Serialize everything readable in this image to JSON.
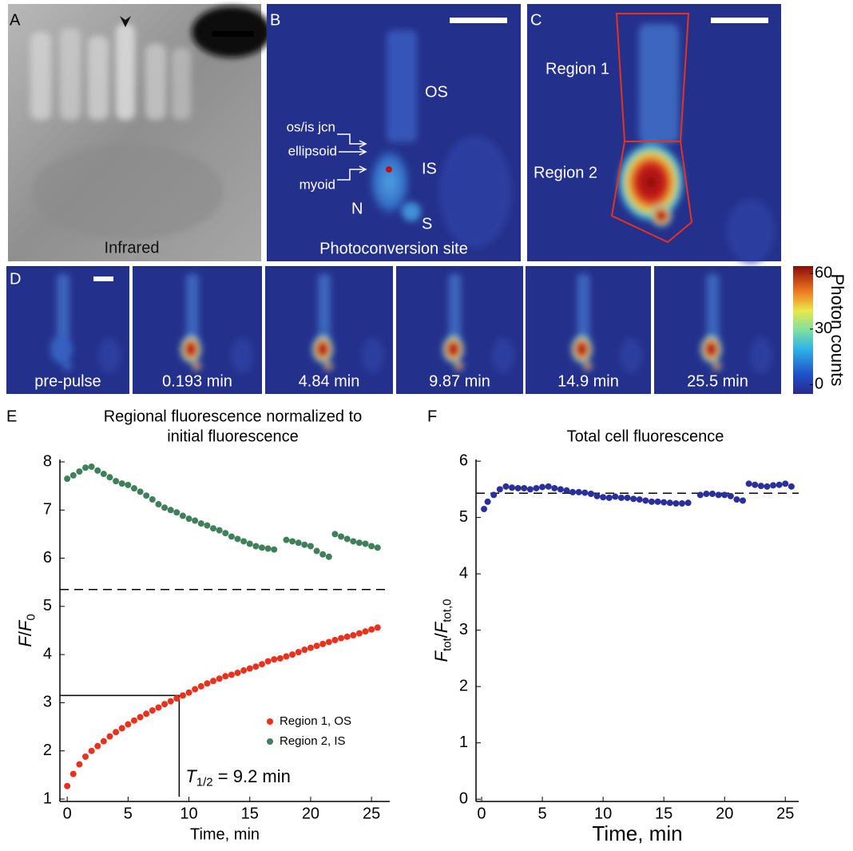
{
  "panel_a": {
    "label": "A",
    "caption": "Infrared"
  },
  "panel_b": {
    "label": "B",
    "os": "OS",
    "is": "IS",
    "n": "N",
    "s": "S",
    "arrows": [
      "os/is jcn",
      "ellipsoid",
      "myoid"
    ],
    "caption": "Photoconversion site"
  },
  "panel_c": {
    "label": "C",
    "regions": [
      "Region 1",
      "Region 2"
    ]
  },
  "panel_d": {
    "label": "D",
    "frames": [
      "pre-pulse",
      "0.193 min",
      "4.84 min",
      "9.87 min",
      "14.9 min",
      "25.5 min"
    ]
  },
  "colorbar": {
    "label": "Photon counts",
    "clim": [
      -5,
      64
    ],
    "ticks": [
      0,
      30,
      60
    ]
  },
  "chart_data": [
    {
      "type": "scatter",
      "panel_label": "E",
      "title_lines": [
        "Regional fluorescence normalized to",
        "initial fluorescence"
      ],
      "xlabel": "Time, min",
      "ylabel": [
        {
          "text": "F",
          "italic": true
        },
        {
          "text": "/"
        },
        {
          "text": "F",
          "italic": true
        },
        {
          "text": "0",
          "sub": true
        }
      ],
      "xlim": [
        -0.6,
        26.5
      ],
      "ylim": [
        0.95,
        8.05
      ],
      "xticks": [
        0,
        5,
        10,
        15,
        20,
        25
      ],
      "yticks": [
        1,
        2,
        3,
        4,
        5,
        6,
        7,
        8
      ],
      "legend": "lower right",
      "reference": {
        "dashed": 5.35,
        "half_time": 9.2,
        "half_level": 3.15
      },
      "annotation": [
        {
          "text": "T",
          "italic": true
        },
        {
          "text": "1/2",
          "sub": true
        },
        {
          "text": " = 9.2 min"
        }
      ],
      "series": [
        {
          "name": "Region 1, OS",
          "color": "#e8321e",
          "x": [
            0,
            0.5,
            1,
            1.5,
            2,
            2.5,
            3,
            3.5,
            4,
            4.5,
            5,
            5.5,
            6,
            6.5,
            7,
            7.5,
            8,
            8.5,
            9,
            9.5,
            10,
            10.5,
            11,
            11.5,
            12,
            12.5,
            13,
            13.5,
            14,
            14.5,
            15,
            15.5,
            16,
            16.5,
            17,
            17.5,
            18,
            18.5,
            19,
            19.5,
            20,
            20.5,
            21,
            21.5,
            22,
            22.5,
            23,
            23.5,
            24,
            24.5,
            25,
            25.5
          ],
          "values": [
            1.27,
            1.52,
            1.72,
            1.88,
            2.0,
            2.1,
            2.2,
            2.3,
            2.39,
            2.47,
            2.55,
            2.63,
            2.7,
            2.77,
            2.84,
            2.9,
            2.97,
            3.03,
            3.09,
            3.15,
            3.21,
            3.28,
            3.34,
            3.4,
            3.45,
            3.5,
            3.55,
            3.58,
            3.62,
            3.67,
            3.71,
            3.75,
            3.8,
            3.86,
            3.9,
            3.92,
            3.96,
            4.0,
            4.05,
            4.1,
            4.14,
            4.18,
            4.22,
            4.26,
            4.3,
            4.34,
            4.37,
            4.4,
            4.44,
            4.48,
            4.52,
            4.56
          ]
        },
        {
          "name": "Region 2, IS",
          "color": "#3f7f5a",
          "x": [
            0,
            0.5,
            1,
            1.5,
            2,
            2.5,
            3,
            3.5,
            4,
            4.5,
            5,
            5.5,
            6,
            6.5,
            7,
            7.5,
            8,
            8.5,
            9,
            9.5,
            10,
            10.5,
            11,
            11.5,
            12,
            12.5,
            13,
            13.5,
            14,
            14.5,
            15,
            15.5,
            16,
            16.5,
            17,
            18,
            18.5,
            19,
            19.5,
            20,
            20.5,
            21,
            21.5,
            22,
            22.5,
            23,
            23.5,
            24,
            24.5,
            25,
            25.5
          ],
          "values": [
            7.65,
            7.72,
            7.8,
            7.88,
            7.9,
            7.82,
            7.75,
            7.68,
            7.6,
            7.55,
            7.52,
            7.45,
            7.38,
            7.3,
            7.22,
            7.12,
            7.05,
            7.0,
            6.95,
            6.88,
            6.82,
            6.78,
            6.72,
            6.68,
            6.62,
            6.58,
            6.52,
            6.45,
            6.4,
            6.35,
            6.3,
            6.25,
            6.22,
            6.2,
            6.18,
            6.38,
            6.35,
            6.32,
            6.28,
            6.25,
            6.15,
            6.08,
            6.03,
            6.5,
            6.45,
            6.4,
            6.35,
            6.32,
            6.3,
            6.25,
            6.22
          ]
        }
      ]
    },
    {
      "type": "scatter",
      "panel_label": "F",
      "title_lines": [
        "Total cell fluorescence"
      ],
      "xlabel": "Time, min",
      "ylabel": [
        {
          "text": "F",
          "italic": true
        },
        {
          "text": "tot",
          "sub": true
        },
        {
          "text": "/"
        },
        {
          "text": "F",
          "italic": true
        },
        {
          "text": "tot,0",
          "sub": true
        }
      ],
      "xlim": [
        -0.46,
        26.1
      ],
      "ylim": [
        -0.04,
        6.03
      ],
      "xticks": [
        0,
        5,
        10,
        15,
        20,
        25
      ],
      "yticks": [
        0,
        1,
        2,
        3,
        4,
        5,
        6
      ],
      "reference": {
        "dashed": 5.43
      },
      "series": [
        {
          "color": "#2a2f9a",
          "x": [
            0.2,
            0.5,
            1,
            1.5,
            2,
            2.5,
            3,
            3.5,
            4,
            4.5,
            5,
            5.5,
            6,
            6.5,
            7,
            7.5,
            8,
            8.5,
            9,
            9.5,
            10,
            10.5,
            11,
            11.5,
            12,
            12.5,
            13,
            13.5,
            14,
            14.5,
            15,
            15.5,
            16,
            16.5,
            17,
            18,
            18.5,
            19,
            19.5,
            20,
            20.5,
            21,
            21.5,
            22,
            22.5,
            23,
            23.5,
            24,
            24.5,
            25,
            25.5
          ],
          "values": [
            5.15,
            5.28,
            5.4,
            5.5,
            5.55,
            5.53,
            5.52,
            5.52,
            5.5,
            5.52,
            5.54,
            5.55,
            5.52,
            5.5,
            5.48,
            5.45,
            5.45,
            5.44,
            5.42,
            5.38,
            5.36,
            5.35,
            5.37,
            5.35,
            5.35,
            5.33,
            5.32,
            5.3,
            5.28,
            5.28,
            5.27,
            5.26,
            5.25,
            5.25,
            5.26,
            5.4,
            5.42,
            5.42,
            5.4,
            5.4,
            5.38,
            5.32,
            5.3,
            5.6,
            5.58,
            5.56,
            5.55,
            5.57,
            5.58,
            5.6,
            5.55
          ]
        }
      ]
    }
  ]
}
